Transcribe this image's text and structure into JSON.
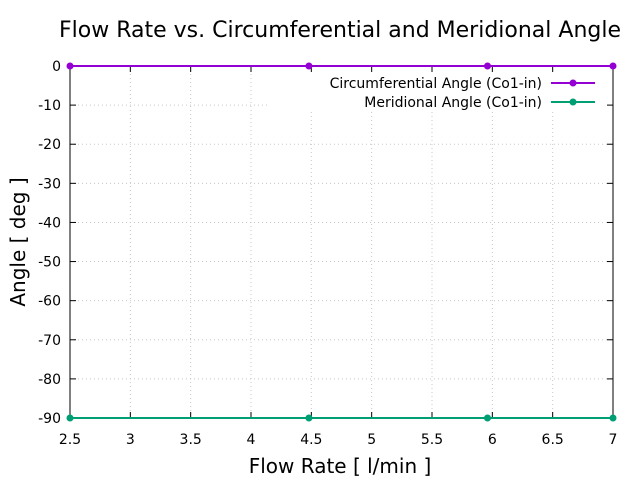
{
  "chart_data": {
    "type": "line",
    "title": "Flow Rate vs. Circumferential and Meridional Angle",
    "xlabel": "Flow Rate [ l/min ]",
    "ylabel": "Angle [ deg ]",
    "xlim": [
      2.5,
      7
    ],
    "ylim": [
      -90,
      0
    ],
    "xticks": [
      "2.5",
      "3",
      "3.5",
      "4",
      "4.5",
      "5",
      "5.5",
      "6",
      "6.5",
      "7"
    ],
    "yticks": [
      "0",
      "-10",
      "-20",
      "-30",
      "-40",
      "-50",
      "-60",
      "-70",
      "-80",
      "-90"
    ],
    "grid": true,
    "legend_position": "top-right",
    "series": [
      {
        "name": "Circumferential Angle (Co1-in)",
        "color": "#9400d3",
        "x": [
          2.5,
          4.48,
          5.96,
          7
        ],
        "y": [
          0,
          0,
          0,
          0
        ]
      },
      {
        "name": "Meridional Angle (Co1-in)",
        "color": "#009e73",
        "x": [
          2.5,
          4.48,
          5.96,
          7
        ],
        "y": [
          -90,
          -90,
          -90,
          -90
        ]
      }
    ]
  }
}
